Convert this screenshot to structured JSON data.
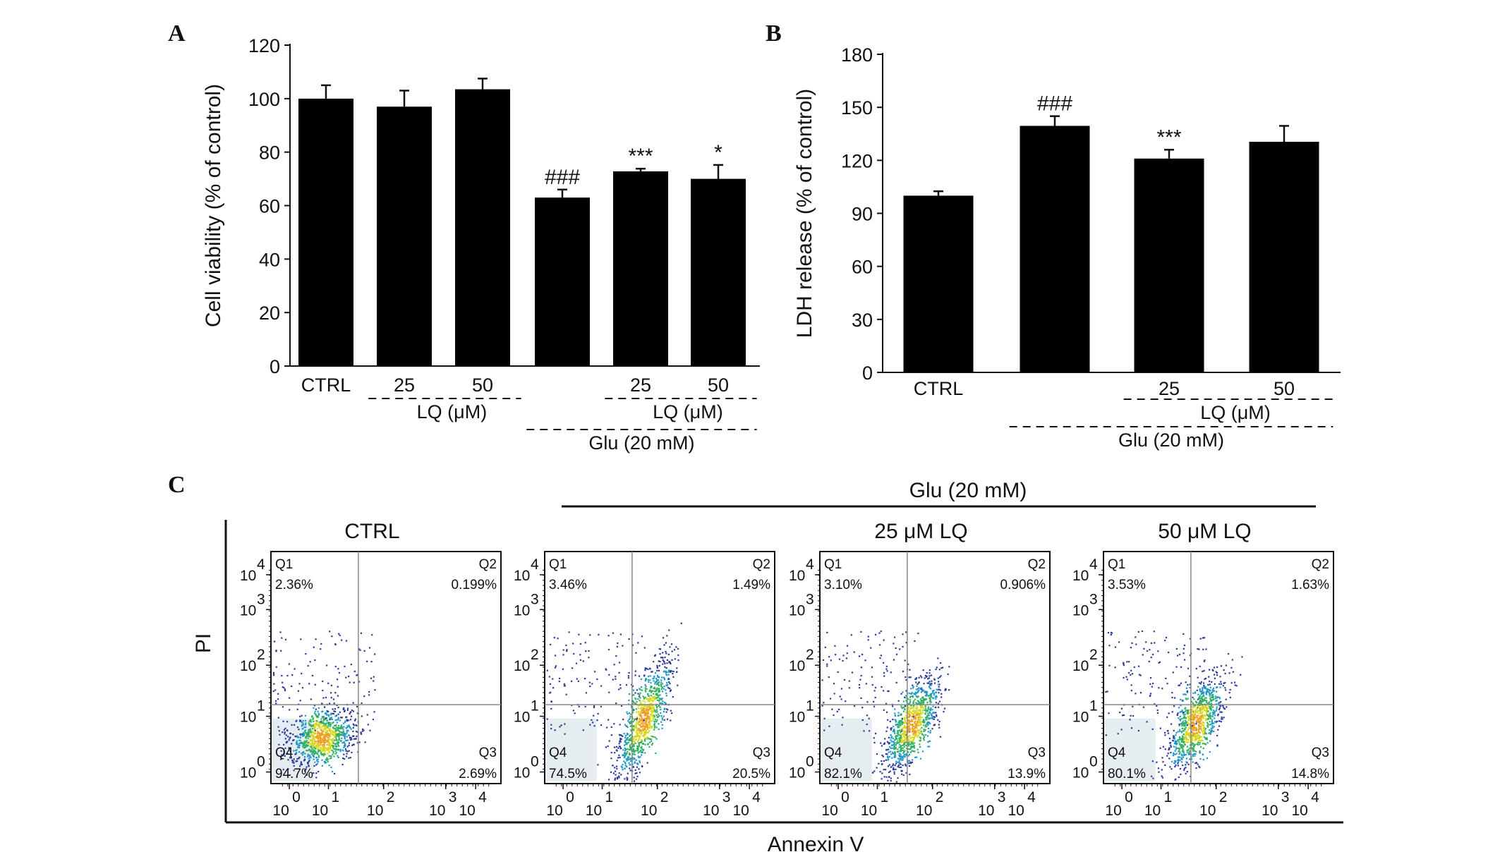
{
  "chart_data": [
    {
      "type": "bar",
      "panel": "A",
      "ylabel": "Cell viability (% of control)",
      "ylim": [
        0,
        120
      ],
      "yticks": [
        0,
        20,
        40,
        60,
        80,
        100,
        120
      ],
      "categories": [
        "CTRL",
        "25",
        "50",
        "",
        "25",
        "50"
      ],
      "values": [
        100,
        97,
        103.5,
        63,
        72.8,
        70
      ],
      "errors": [
        5,
        6,
        4,
        3,
        1,
        5.2
      ],
      "annotations": [
        "",
        "",
        "",
        "###",
        "***",
        "*"
      ],
      "groups": [
        {
          "label": "LQ (μM)",
          "from": 1,
          "to": 2,
          "row": 1
        },
        {
          "label": "LQ (μM)",
          "from": 4,
          "to": 5,
          "row": 1
        },
        {
          "label": "Glu (20 mM)",
          "from": 3,
          "to": 5,
          "row": 2
        }
      ]
    },
    {
      "type": "bar",
      "panel": "B",
      "ylabel": "LDH release (% of control)",
      "ylim": [
        0,
        180
      ],
      "yticks": [
        0,
        30,
        60,
        90,
        120,
        150,
        180
      ],
      "categories": [
        "CTRL",
        "",
        "25",
        "50"
      ],
      "values": [
        100,
        139.5,
        121,
        130.5
      ],
      "errors": [
        2.5,
        5.5,
        5,
        9
      ],
      "annotations": [
        "",
        "###",
        "***",
        ""
      ],
      "groups": [
        {
          "label": "LQ (μM)",
          "from": 2,
          "to": 3,
          "row": 1
        },
        {
          "label": "Glu (20 mM)",
          "from": 1,
          "to": 3,
          "row": 2
        }
      ]
    },
    {
      "type": "scatter",
      "panel": "C",
      "xlabel": "Annexin V",
      "ylabel": "PI",
      "group_label": "Glu (20 mM)",
      "tick_base": "10",
      "tick_exponents": [
        "0",
        "1",
        "2",
        "3",
        "4"
      ],
      "plots": [
        {
          "title": "CTRL",
          "Q1": "2.36%",
          "Q2": "0.199%",
          "Q3": "2.69%",
          "Q4": "94.7%"
        },
        {
          "title": "",
          "Q1": "3.46%",
          "Q2": "1.49%",
          "Q3": "20.5%",
          "Q4": "74.5%"
        },
        {
          "title": "25 μM  LQ",
          "Q1": "3.10%",
          "Q2": "0.906%",
          "Q3": "13.9%",
          "Q4": "82.1%"
        },
        {
          "title": "50 μM LQ",
          "Q1": "3.53%",
          "Q2": "1.63%",
          "Q3": "14.8%",
          "Q4": "80.1%"
        }
      ],
      "quadrant_names": [
        "Q1",
        "Q2",
        "Q3",
        "Q4"
      ]
    }
  ]
}
